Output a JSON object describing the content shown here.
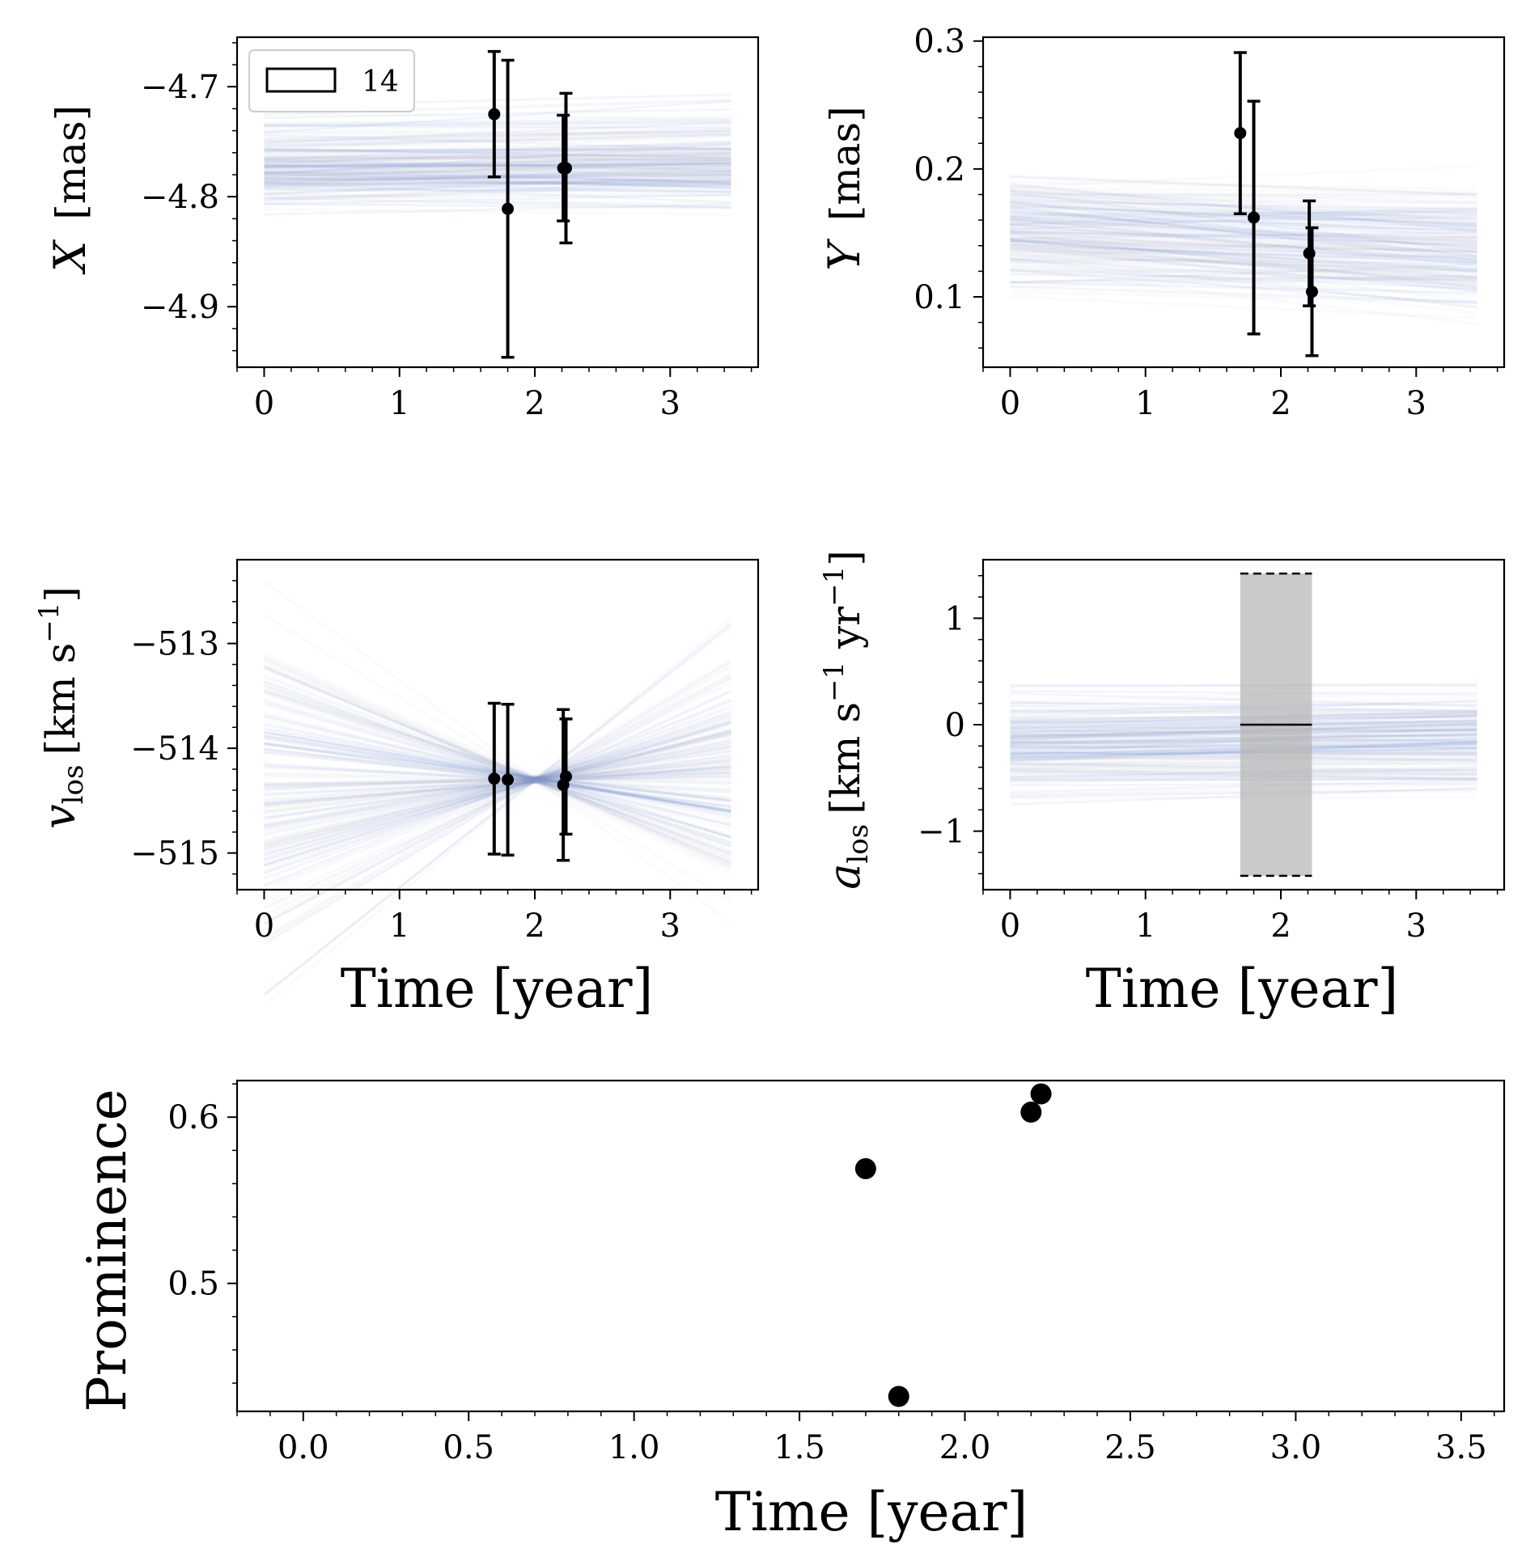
{
  "figure": {
    "time_label": "Time [year]",
    "legend_label": "14"
  },
  "colors": {
    "model_lines": "#4f7fd6",
    "observations": "#000000",
    "acceleration_band": "#b3b3b3"
  },
  "chart_data": [
    {
      "id": "x",
      "type": "line",
      "ylabel_main": "X",
      "ylabel_unit": "[mas]",
      "xlabel": "",
      "xlim": [
        -0.2,
        3.65
      ],
      "ylim": [
        -4.955,
        -4.655
      ],
      "xticks": [
        0,
        1,
        2,
        3
      ],
      "xtick_labels": [
        "0",
        "1",
        "2",
        "3"
      ],
      "yticks": [
        -4.7,
        -4.8,
        -4.9
      ],
      "ytick_labels": [
        "−4.7",
        "−4.8",
        "−4.9"
      ],
      "legend": {
        "label": "14",
        "position": "upper-left"
      },
      "model_band": {
        "x_range": [
          0,
          3.45
        ],
        "center_start": -4.772,
        "center_end": -4.768,
        "spread": 0.04,
        "slope_spread": 0.004
      },
      "points": [
        {
          "x": 1.7,
          "y": -4.725,
          "err": 0.057
        },
        {
          "x": 1.8,
          "y": -4.811,
          "err": 0.135
        },
        {
          "x": 2.21,
          "y": -4.774,
          "err": 0.048
        },
        {
          "x": 2.23,
          "y": -4.774,
          "err": 0.068
        }
      ]
    },
    {
      "id": "y",
      "type": "line",
      "ylabel_main": "Y",
      "ylabel_unit": "[mas]",
      "xlabel": "",
      "xlim": [
        -0.2,
        3.65
      ],
      "ylim": [
        0.045,
        0.303
      ],
      "xticks": [
        0,
        1,
        2,
        3
      ],
      "xtick_labels": [
        "0",
        "1",
        "2",
        "3"
      ],
      "yticks": [
        0.1,
        0.2,
        0.3
      ],
      "ytick_labels": [
        "0.1",
        "0.2",
        "0.3"
      ],
      "model_band": {
        "x_range": [
          0,
          3.45
        ],
        "center_start": 0.15,
        "center_end": 0.135,
        "spread": 0.045,
        "slope_spread": 0.006
      },
      "points": [
        {
          "x": 1.7,
          "y": 0.228,
          "err": 0.063
        },
        {
          "x": 1.8,
          "y": 0.162,
          "err": 0.091
        },
        {
          "x": 2.21,
          "y": 0.134,
          "err": 0.041
        },
        {
          "x": 2.23,
          "y": 0.104,
          "err": 0.05
        }
      ]
    },
    {
      "id": "vlos",
      "type": "line",
      "ylabel_main": "v",
      "ylabel_sub": "los",
      "ylabel_unit": "[km s",
      "ylabel_exp": "−1",
      "ylabel_close": "]",
      "xlabel": "Time [year]",
      "xlim": [
        -0.2,
        3.65
      ],
      "ylim": [
        -515.35,
        -512.2
      ],
      "xticks": [
        0,
        1,
        2,
        3
      ],
      "xtick_labels": [
        "0",
        "1",
        "2",
        "3"
      ],
      "yticks": [
        -513,
        -514,
        -515
      ],
      "ytick_labels": [
        "−513",
        "−514",
        "−515"
      ],
      "model_band": {
        "x_range": [
          0,
          3.45
        ],
        "pivot_x": 2.0,
        "pivot_y": -514.3,
        "slope_spread": 0.55
      },
      "points": [
        {
          "x": 1.7,
          "y": -514.29,
          "err": 0.72
        },
        {
          "x": 1.8,
          "y": -514.3,
          "err": 0.72
        },
        {
          "x": 2.21,
          "y": -514.35,
          "err": 0.72
        },
        {
          "x": 2.23,
          "y": -514.27,
          "err": 0.55
        }
      ]
    },
    {
      "id": "alos",
      "type": "line",
      "ylabel_main": "a",
      "ylabel_sub": "los",
      "ylabel_unit": "[km s",
      "ylabel_exp1": "−1",
      "ylabel_mid": " yr",
      "ylabel_exp2": "−1",
      "ylabel_close": "]",
      "xlabel": "Time [year]",
      "xlim": [
        -0.2,
        3.65
      ],
      "ylim": [
        -1.55,
        1.55
      ],
      "xticks": [
        0,
        1,
        2,
        3
      ],
      "xtick_labels": [
        "0",
        "1",
        "2",
        "3"
      ],
      "yticks": [
        1,
        0,
        -1
      ],
      "ytick_labels": [
        "1",
        "0",
        "−1"
      ],
      "model_band": {
        "x_range": [
          0,
          3.45
        ],
        "center_start": -0.2,
        "center_end": -0.15,
        "spread": 0.45,
        "slope_spread": 0.03
      },
      "band": {
        "x0": 1.7,
        "x1": 2.23,
        "y_low": -1.42,
        "y_high": 1.42,
        "center": 0.0
      }
    },
    {
      "id": "prominence",
      "type": "scatter",
      "ylabel_main": "Prominence",
      "xlabel": "Time [year]",
      "xlim": [
        -0.2,
        3.63
      ],
      "ylim": [
        0.423,
        0.622
      ],
      "xticks": [
        0.0,
        0.5,
        1.0,
        1.5,
        2.0,
        2.5,
        3.0,
        3.5
      ],
      "xtick_labels": [
        "0.0",
        "0.5",
        "1.0",
        "1.5",
        "2.0",
        "2.5",
        "3.0",
        "3.5"
      ],
      "yticks": [
        0.6,
        0.5
      ],
      "ytick_labels": [
        "0.6",
        "0.5"
      ],
      "points": [
        {
          "x": 1.7,
          "y": 0.569
        },
        {
          "x": 1.8,
          "y": 0.432
        },
        {
          "x": 2.2,
          "y": 0.603
        },
        {
          "x": 2.23,
          "y": 0.614
        }
      ]
    }
  ]
}
